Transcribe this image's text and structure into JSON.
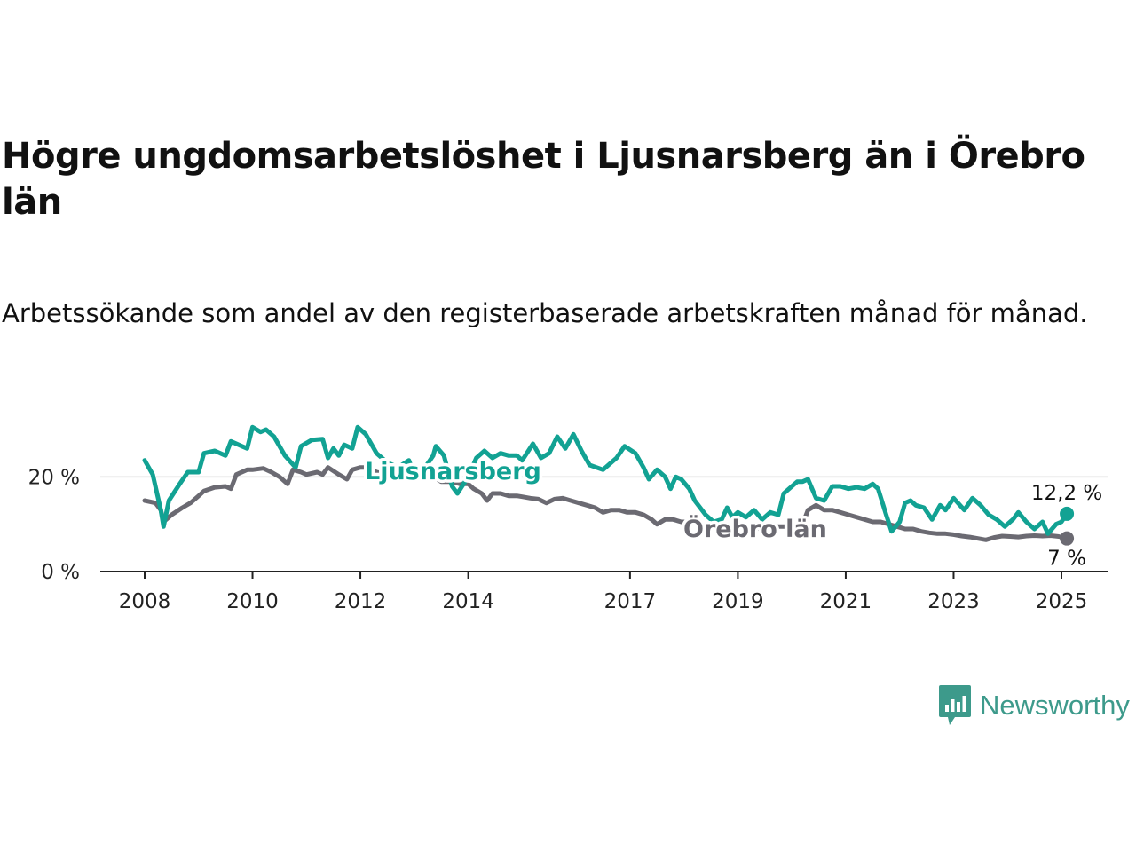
{
  "title": "Högre ungdomsarbetslöshet i Ljusnarsberg än i Örebro län",
  "subtitle": "Arbetssökande som andel av den registerbaserade arbetskraften månad för månad.",
  "brand": {
    "name": "Newsworthy",
    "icon": "bar-chart-speech-bubble-icon"
  },
  "colors": {
    "ljusnarsberg": "#12a293",
    "orebro": "#6b6a72",
    "grid": "#d9d9d9",
    "axis": "#222222"
  },
  "chart_data": {
    "type": "line",
    "x_unit": "year",
    "y_unit": "percent",
    "ylim": [
      0,
      30
    ],
    "xlim": [
      2008,
      2025.1
    ],
    "y_ticks": [
      {
        "value": 0,
        "label": "0 %"
      },
      {
        "value": 20,
        "label": "20 %"
      }
    ],
    "x_ticks": [
      {
        "value": 2008,
        "label": "2008"
      },
      {
        "value": 2010,
        "label": "2010"
      },
      {
        "value": 2012,
        "label": "2012"
      },
      {
        "value": 2014,
        "label": "2014"
      },
      {
        "value": 2017,
        "label": "2017"
      },
      {
        "value": 2019,
        "label": "2019"
      },
      {
        "value": 2021,
        "label": "2021"
      },
      {
        "value": 2023,
        "label": "2023"
      },
      {
        "value": 2025,
        "label": "2025"
      }
    ],
    "grid": "horizontal",
    "series": [
      {
        "name": "Ljusnarsberg",
        "color": "#12a293",
        "end_label": "12,2 %",
        "points": [
          [
            2008.0,
            23.5
          ],
          [
            2008.15,
            20.5
          ],
          [
            2008.3,
            13
          ],
          [
            2008.35,
            9.5
          ],
          [
            2008.45,
            15
          ],
          [
            2008.65,
            18.5
          ],
          [
            2008.8,
            21
          ],
          [
            2009.0,
            21
          ],
          [
            2009.1,
            25
          ],
          [
            2009.3,
            25.5
          ],
          [
            2009.5,
            24.5
          ],
          [
            2009.6,
            27.5
          ],
          [
            2009.8,
            26.5
          ],
          [
            2009.9,
            26
          ],
          [
            2010.0,
            30.5
          ],
          [
            2010.15,
            29.5
          ],
          [
            2010.25,
            30
          ],
          [
            2010.4,
            28.5
          ],
          [
            2010.6,
            24.5
          ],
          [
            2010.8,
            22
          ],
          [
            2010.9,
            26.5
          ],
          [
            2011.1,
            27.8
          ],
          [
            2011.3,
            28
          ],
          [
            2011.4,
            24
          ],
          [
            2011.5,
            26
          ],
          [
            2011.6,
            24.5
          ],
          [
            2011.7,
            26.8
          ],
          [
            2011.85,
            26
          ],
          [
            2011.95,
            30.5
          ],
          [
            2012.1,
            29
          ],
          [
            2012.3,
            25
          ],
          [
            2012.5,
            23
          ],
          [
            2012.7,
            22
          ],
          [
            2012.9,
            23.5
          ],
          [
            2013.0,
            20.5
          ],
          [
            2013.2,
            22
          ],
          [
            2013.35,
            24.5
          ],
          [
            2013.4,
            26.5
          ],
          [
            2013.55,
            24.5
          ],
          [
            2013.7,
            18
          ],
          [
            2013.8,
            16.5
          ],
          [
            2014.0,
            20
          ],
          [
            2014.15,
            24
          ],
          [
            2014.3,
            25.5
          ],
          [
            2014.45,
            24
          ],
          [
            2014.6,
            25
          ],
          [
            2014.75,
            24.5
          ],
          [
            2014.9,
            24.5
          ],
          [
            2015.0,
            23.5
          ],
          [
            2015.2,
            27
          ],
          [
            2015.35,
            24
          ],
          [
            2015.5,
            25
          ],
          [
            2015.65,
            28.5
          ],
          [
            2015.8,
            26
          ],
          [
            2015.95,
            29
          ],
          [
            2016.1,
            25.5
          ],
          [
            2016.25,
            22.5
          ],
          [
            2016.5,
            21.5
          ],
          [
            2016.75,
            24
          ],
          [
            2016.9,
            26.5
          ],
          [
            2017.1,
            25
          ],
          [
            2017.25,
            22
          ],
          [
            2017.35,
            19.5
          ],
          [
            2017.5,
            21.5
          ],
          [
            2017.65,
            20
          ],
          [
            2017.75,
            17.5
          ],
          [
            2017.85,
            20
          ],
          [
            2017.95,
            19.5
          ],
          [
            2018.1,
            17.5
          ],
          [
            2018.2,
            15
          ],
          [
            2018.4,
            12
          ],
          [
            2018.55,
            10.5
          ],
          [
            2018.7,
            11
          ],
          [
            2018.8,
            13.5
          ],
          [
            2018.9,
            11.5
          ],
          [
            2019.0,
            12.5
          ],
          [
            2019.15,
            11.5
          ],
          [
            2019.3,
            13
          ],
          [
            2019.45,
            11
          ],
          [
            2019.6,
            12.5
          ],
          [
            2019.75,
            12
          ],
          [
            2019.85,
            16.5
          ],
          [
            2020.0,
            18
          ],
          [
            2020.1,
            19
          ],
          [
            2020.2,
            19
          ],
          [
            2020.3,
            19.5
          ],
          [
            2020.45,
            15.5
          ],
          [
            2020.6,
            15
          ],
          [
            2020.75,
            18
          ],
          [
            2020.9,
            18
          ],
          [
            2021.05,
            17.5
          ],
          [
            2021.2,
            17.8
          ],
          [
            2021.35,
            17.5
          ],
          [
            2021.5,
            18.5
          ],
          [
            2021.6,
            17.5
          ],
          [
            2021.75,
            12
          ],
          [
            2021.85,
            8.5
          ],
          [
            2022.0,
            10.5
          ],
          [
            2022.1,
            14.5
          ],
          [
            2022.2,
            15
          ],
          [
            2022.3,
            14
          ],
          [
            2022.45,
            13.5
          ],
          [
            2022.6,
            11
          ],
          [
            2022.75,
            14
          ],
          [
            2022.85,
            13
          ],
          [
            2023.0,
            15.5
          ],
          [
            2023.2,
            13
          ],
          [
            2023.35,
            15.5
          ],
          [
            2023.5,
            14
          ],
          [
            2023.65,
            12
          ],
          [
            2023.8,
            11
          ],
          [
            2023.95,
            9.5
          ],
          [
            2024.1,
            11
          ],
          [
            2024.2,
            12.5
          ],
          [
            2024.35,
            10.5
          ],
          [
            2024.5,
            9
          ],
          [
            2024.65,
            10.5
          ],
          [
            2024.75,
            8
          ],
          [
            2024.9,
            10
          ],
          [
            2025.0,
            10.5
          ],
          [
            2025.1,
            12.2
          ]
        ]
      },
      {
        "name": "Örebro län",
        "color": "#6b6a72",
        "end_label": "7 %",
        "points": [
          [
            2008.0,
            15
          ],
          [
            2008.2,
            14.5
          ],
          [
            2008.3,
            13
          ],
          [
            2008.35,
            10.5
          ],
          [
            2008.5,
            12
          ],
          [
            2008.7,
            13.5
          ],
          [
            2008.85,
            14.5
          ],
          [
            2009.0,
            16
          ],
          [
            2009.1,
            17
          ],
          [
            2009.3,
            17.8
          ],
          [
            2009.5,
            18
          ],
          [
            2009.6,
            17.5
          ],
          [
            2009.7,
            20.5
          ],
          [
            2009.9,
            21.5
          ],
          [
            2010.0,
            21.5
          ],
          [
            2010.2,
            21.8
          ],
          [
            2010.35,
            21
          ],
          [
            2010.5,
            20
          ],
          [
            2010.65,
            18.5
          ],
          [
            2010.75,
            21.5
          ],
          [
            2010.9,
            21
          ],
          [
            2011.0,
            20.5
          ],
          [
            2011.2,
            21
          ],
          [
            2011.3,
            20.5
          ],
          [
            2011.4,
            22
          ],
          [
            2011.6,
            20.5
          ],
          [
            2011.75,
            19.5
          ],
          [
            2011.85,
            21.5
          ],
          [
            2012.0,
            22
          ],
          [
            2012.15,
            22
          ],
          [
            2012.3,
            21
          ],
          [
            2012.5,
            20.5
          ],
          [
            2012.7,
            20
          ],
          [
            2012.9,
            20.5
          ],
          [
            2013.0,
            19.5
          ],
          [
            2013.2,
            20.5
          ],
          [
            2013.35,
            20
          ],
          [
            2013.5,
            19
          ],
          [
            2013.7,
            19
          ],
          [
            2013.85,
            18.5
          ],
          [
            2014.0,
            18.5
          ],
          [
            2014.1,
            17.5
          ],
          [
            2014.25,
            16.5
          ],
          [
            2014.35,
            15
          ],
          [
            2014.45,
            16.5
          ],
          [
            2014.6,
            16.5
          ],
          [
            2014.75,
            16
          ],
          [
            2014.9,
            16
          ],
          [
            2015.0,
            15.8
          ],
          [
            2015.15,
            15.5
          ],
          [
            2015.3,
            15.3
          ],
          [
            2015.45,
            14.5
          ],
          [
            2015.6,
            15.3
          ],
          [
            2015.75,
            15.5
          ],
          [
            2015.9,
            15
          ],
          [
            2016.05,
            14.5
          ],
          [
            2016.2,
            14
          ],
          [
            2016.35,
            13.5
          ],
          [
            2016.5,
            12.5
          ],
          [
            2016.65,
            13
          ],
          [
            2016.8,
            13
          ],
          [
            2016.95,
            12.5
          ],
          [
            2017.1,
            12.5
          ],
          [
            2017.25,
            12
          ],
          [
            2017.4,
            11
          ],
          [
            2017.5,
            10
          ],
          [
            2017.65,
            11
          ],
          [
            2017.8,
            11
          ],
          [
            2017.95,
            10.5
          ],
          [
            2018.1,
            10.5
          ],
          [
            2018.3,
            10
          ],
          [
            2018.5,
            9.8
          ],
          [
            2018.7,
            10
          ],
          [
            2018.85,
            9.6
          ],
          [
            2019.0,
            9.5
          ],
          [
            2019.15,
            9.5
          ],
          [
            2019.3,
            9.2
          ],
          [
            2019.45,
            9
          ],
          [
            2019.6,
            9
          ],
          [
            2019.75,
            9.5
          ],
          [
            2019.9,
            9.5
          ],
          [
            2020.05,
            9.8
          ],
          [
            2020.2,
            10
          ],
          [
            2020.3,
            13
          ],
          [
            2020.45,
            14
          ],
          [
            2020.6,
            13
          ],
          [
            2020.75,
            13
          ],
          [
            2020.9,
            12.5
          ],
          [
            2021.05,
            12
          ],
          [
            2021.2,
            11.5
          ],
          [
            2021.35,
            11
          ],
          [
            2021.5,
            10.5
          ],
          [
            2021.65,
            10.5
          ],
          [
            2021.8,
            10
          ],
          [
            2021.95,
            9.5
          ],
          [
            2022.1,
            9
          ],
          [
            2022.25,
            9
          ],
          [
            2022.4,
            8.5
          ],
          [
            2022.55,
            8.2
          ],
          [
            2022.7,
            8
          ],
          [
            2022.85,
            8
          ],
          [
            2023.0,
            7.8
          ],
          [
            2023.15,
            7.5
          ],
          [
            2023.3,
            7.3
          ],
          [
            2023.45,
            7
          ],
          [
            2023.6,
            6.7
          ],
          [
            2023.75,
            7.2
          ],
          [
            2023.9,
            7.5
          ],
          [
            2024.05,
            7.4
          ],
          [
            2024.2,
            7.3
          ],
          [
            2024.35,
            7.5
          ],
          [
            2024.5,
            7.6
          ],
          [
            2024.65,
            7.5
          ],
          [
            2024.8,
            7.6
          ],
          [
            2024.95,
            7.4
          ],
          [
            2025.1,
            7.0
          ]
        ]
      }
    ]
  }
}
